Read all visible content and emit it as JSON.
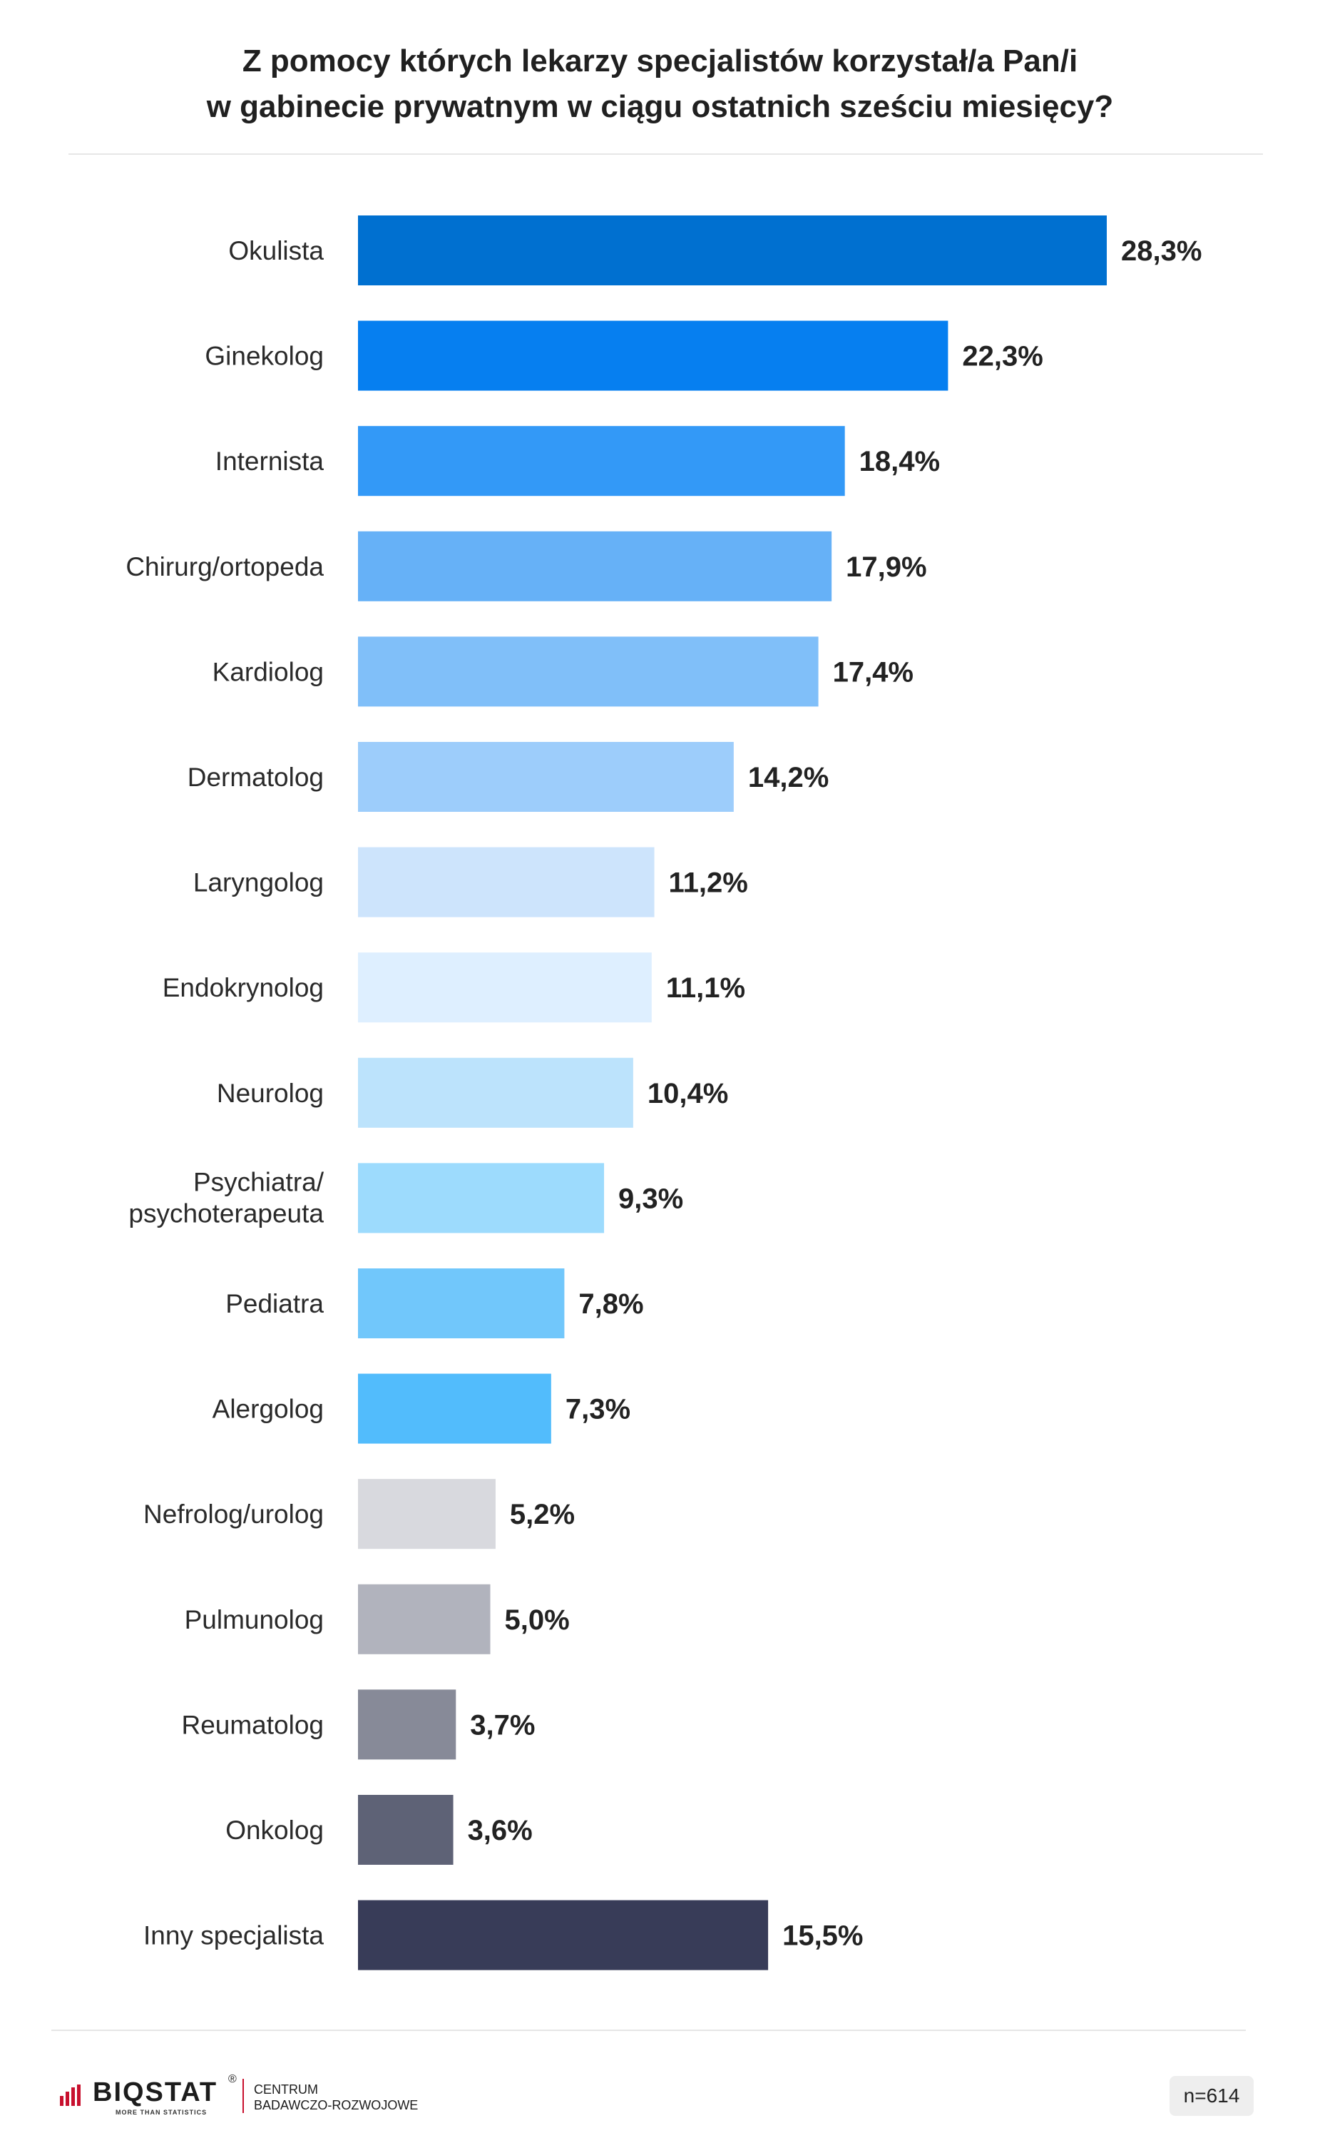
{
  "title": {
    "line1": "Z pomocy których lekarzy specjalistów korzystał/a Pan/i",
    "line2": "w gabinecie prywatnym w ciągu ostatnich sześciu miesięcy?"
  },
  "chart_data": {
    "type": "bar",
    "orientation": "horizontal",
    "title": "Z pomocy których lekarzy specjalistów korzystał/a Pan/i w gabinecie prywatnym w ciągu ostatnich sześciu miesięcy?",
    "xlabel": "",
    "ylabel": "",
    "grid": false,
    "xlim": [
      0,
      28.3
    ],
    "categories": [
      "Okulista",
      "Ginekolog",
      "Internista",
      "Chirurg/ortopeda",
      "Kardiolog",
      "Dermatolog",
      "Laryngolog",
      "Endokrynolog",
      "Neurolog",
      "Psychiatra/ psychoterapeuta",
      "Pediatra",
      "Alergolog",
      "Nefrolog/urolog",
      "Pulmunolog",
      "Reumatolog",
      "Onkolog",
      "Inny specjalista"
    ],
    "values": [
      28.3,
      22.3,
      18.4,
      17.9,
      17.4,
      14.2,
      11.2,
      11.1,
      10.4,
      9.3,
      7.8,
      7.3,
      5.2,
      5.0,
      3.7,
      3.6,
      15.5
    ],
    "value_labels": [
      "28,3%",
      "22,3%",
      "18,4%",
      "17,9%",
      "17,4%",
      "14,2%",
      "11,2%",
      "11,1%",
      "10,4%",
      "9,3%",
      "7,8%",
      "7,3%",
      "5,2%",
      "5,0%",
      "3,7%",
      "3,6%",
      "15,5%"
    ],
    "colors": [
      "#0070d0",
      "#067ff0",
      "#3399f7",
      "#66b1f7",
      "#80bff9",
      "#9dcdfb",
      "#cde4fc",
      "#deefff",
      "#bce3fc",
      "#9ddbfd",
      "#71c7fb",
      "#52bcfc",
      "#d8d9de",
      "#b1b3bd",
      "#878a98",
      "#5e6276",
      "#383c58"
    ]
  },
  "footer": {
    "logo_text": "BIQSTAT",
    "logo_registered": "®",
    "logo_tagline": "MORE THAN STATISTICS",
    "logo_mark_color": "#c8102e",
    "centre_line1": "CENTRUM",
    "centre_line2": "BADAWCZO-ROZWOJOWE",
    "sample_size": "n=614"
  }
}
